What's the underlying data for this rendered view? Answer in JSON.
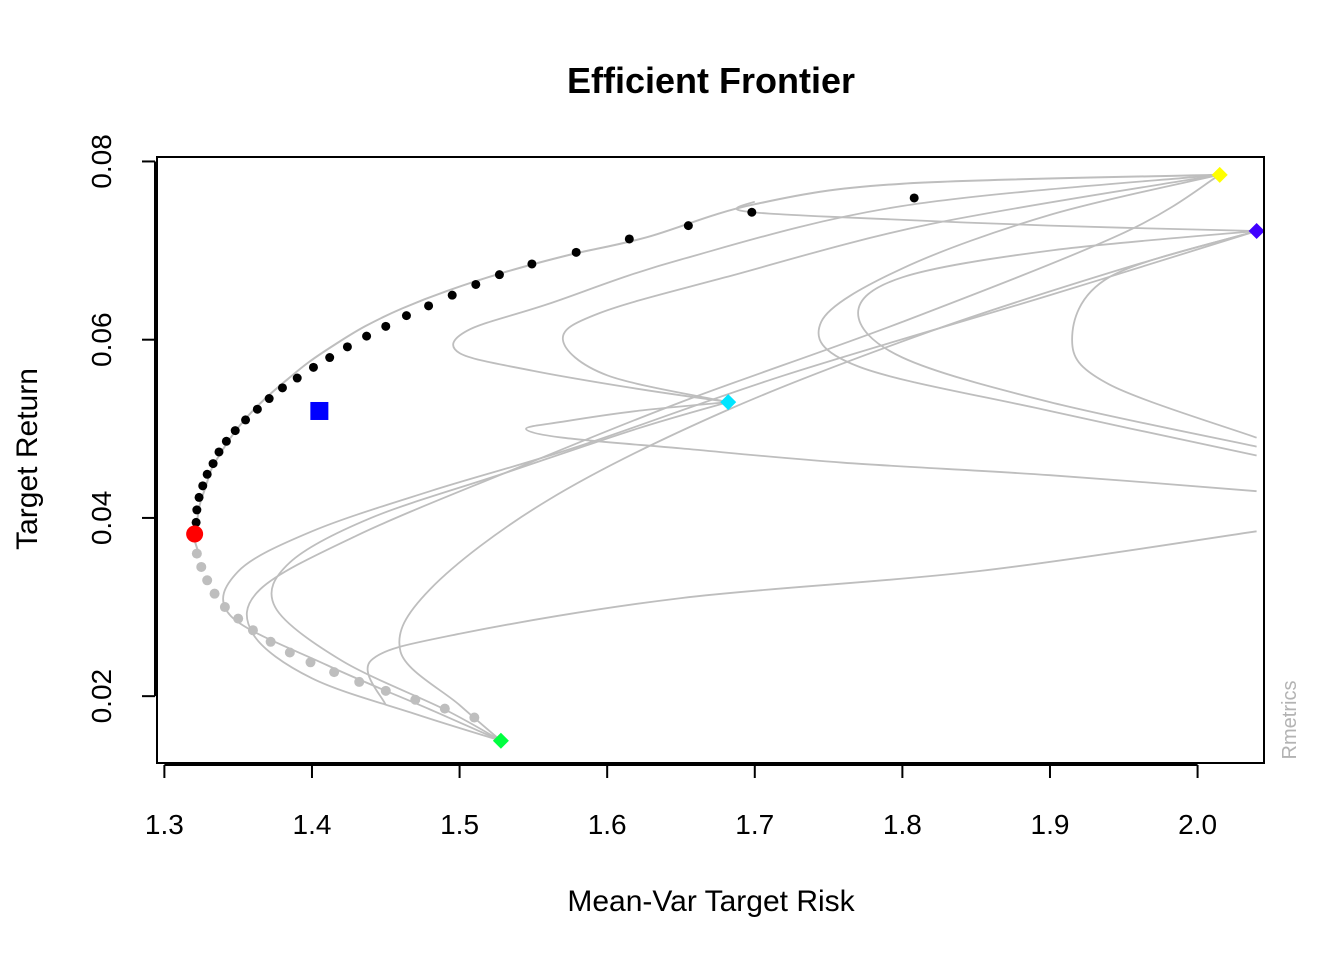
{
  "chart_data": {
    "type": "scatter",
    "title": "Efficient Frontier",
    "xlabel": "Mean-Var Target Risk",
    "ylabel": "Target Return",
    "xlim": [
      1.295,
      2.045
    ],
    "ylim": [
      0.0125,
      0.0805
    ],
    "xticks": [
      1.3,
      1.4,
      1.5,
      1.6,
      1.7,
      1.8,
      1.9,
      2.0
    ],
    "yticks": [
      0.02,
      0.04,
      0.06,
      0.08
    ],
    "xtick_labels": [
      "1.3",
      "1.4",
      "1.5",
      "1.6",
      "1.7",
      "1.8",
      "1.9",
      "2.0"
    ],
    "ytick_labels": [
      "0.02",
      "0.04",
      "0.06",
      "0.08"
    ],
    "grid": false,
    "credit": "Rmetrics",
    "colors": {
      "efficient": "#000000",
      "inefficient": "#bebebe",
      "min_variance": "#ff0000",
      "equal_weights": "#0000ff",
      "curves": "#bebebe"
    },
    "frontier_line": {
      "x": [
        1.323,
        1.3205,
        1.3207,
        1.322,
        1.324,
        1.328,
        1.332,
        1.339,
        1.347,
        1.357,
        1.369,
        1.383,
        1.398,
        1.416,
        1.436,
        1.461,
        1.492,
        1.529,
        1.574,
        1.627,
        1.7,
        1.8,
        2.015
      ],
      "y": [
        0.0362,
        0.0375,
        0.0382,
        0.0395,
        0.0415,
        0.0435,
        0.0455,
        0.0475,
        0.0495,
        0.0515,
        0.0535,
        0.0555,
        0.0575,
        0.0595,
        0.0615,
        0.0635,
        0.0655,
        0.0675,
        0.0695,
        0.0715,
        0.0752,
        0.0775,
        0.0785
      ]
    },
    "efficient_points": {
      "x": [
        1.3215,
        1.322,
        1.3235,
        1.326,
        1.329,
        1.333,
        1.337,
        1.342,
        1.348,
        1.355,
        1.363,
        1.371,
        1.38,
        1.39,
        1.401,
        1.412,
        1.424,
        1.437,
        1.45,
        1.464,
        1.479,
        1.495,
        1.511,
        1.527,
        1.549,
        1.579,
        1.615,
        1.655,
        1.698,
        1.808
      ],
      "y": [
        0.0395,
        0.0409,
        0.0423,
        0.0436,
        0.0449,
        0.0461,
        0.0474,
        0.0486,
        0.0498,
        0.051,
        0.0522,
        0.0534,
        0.0546,
        0.0557,
        0.0569,
        0.058,
        0.0592,
        0.0604,
        0.0615,
        0.0627,
        0.0638,
        0.065,
        0.0662,
        0.0673,
        0.0685,
        0.0698,
        0.0713,
        0.0728,
        0.0743,
        0.0759
      ]
    },
    "inefficient_points": {
      "x": [
        1.322,
        1.325,
        1.329,
        1.334,
        1.341,
        1.35,
        1.36,
        1.372,
        1.385,
        1.399,
        1.415,
        1.432,
        1.45,
        1.47,
        1.49,
        1.51
      ],
      "y": [
        0.036,
        0.0345,
        0.033,
        0.0315,
        0.03,
        0.0287,
        0.0274,
        0.0261,
        0.0249,
        0.0238,
        0.0227,
        0.0216,
        0.0206,
        0.0196,
        0.0186,
        0.0176
      ]
    },
    "min_variance_point": {
      "x": 1.3205,
      "y": 0.0382
    },
    "equal_weights_point": {
      "x": 1.405,
      "y": 0.052
    },
    "single_assets": [
      {
        "x": 1.528,
        "y": 0.015,
        "color": "#00ff40"
      },
      {
        "x": 1.682,
        "y": 0.053,
        "color": "#00e5ff"
      },
      {
        "x": 2.015,
        "y": 0.0785,
        "color": "#ffff00"
      },
      {
        "x": 2.04,
        "y": 0.0722,
        "color": "#4000ff"
      }
    ],
    "two_asset_curves": [
      {
        "x": [
          1.528,
          1.49,
          1.42,
          1.375,
          1.385,
          1.44,
          1.53,
          1.62,
          1.682
        ],
        "y": [
          0.015,
          0.0185,
          0.024,
          0.03,
          0.035,
          0.04,
          0.045,
          0.05,
          0.053
        ]
      },
      {
        "x": [
          1.528,
          1.47,
          1.4,
          1.36,
          1.365,
          1.43,
          1.53,
          1.65,
          1.8,
          1.95,
          2.015
        ],
        "y": [
          0.015,
          0.018,
          0.022,
          0.027,
          0.032,
          0.038,
          0.045,
          0.053,
          0.062,
          0.072,
          0.0785
        ]
      },
      {
        "x": [
          1.528,
          1.48,
          1.41,
          1.345,
          1.35,
          1.4,
          1.48,
          1.58,
          1.72,
          1.9,
          2.04
        ],
        "y": [
          0.015,
          0.0185,
          0.0235,
          0.029,
          0.034,
          0.0385,
          0.043,
          0.048,
          0.056,
          0.065,
          0.0722
        ]
      },
      {
        "x": [
          1.528,
          1.5,
          1.46,
          1.48,
          1.56,
          1.68,
          1.82,
          1.95,
          2.04
        ],
        "y": [
          0.015,
          0.019,
          0.025,
          0.032,
          0.042,
          0.052,
          0.061,
          0.068,
          0.0722
        ]
      },
      {
        "x": [
          1.682,
          1.62,
          1.55,
          1.5,
          1.505,
          1.56,
          1.65,
          1.8,
          2.015
        ],
        "y": [
          0.053,
          0.0545,
          0.0565,
          0.0585,
          0.061,
          0.064,
          0.069,
          0.075,
          0.0785
        ]
      },
      {
        "x": [
          1.682,
          1.62,
          1.57,
          1.545,
          1.57,
          1.65,
          1.76,
          1.9,
          2.04
        ],
        "y": [
          0.053,
          0.052,
          0.0508,
          0.05,
          0.049,
          0.0478,
          0.0462,
          0.0448,
          0.043
        ]
      },
      {
        "x": [
          1.682,
          1.6,
          1.57,
          1.595,
          1.68,
          1.82,
          2.015
        ],
        "y": [
          0.053,
          0.056,
          0.06,
          0.063,
          0.067,
          0.073,
          0.0785
        ]
      },
      {
        "x": [
          2.04,
          1.9,
          1.8,
          1.77,
          1.8,
          1.9,
          2.04
        ],
        "y": [
          0.0722,
          0.07,
          0.067,
          0.063,
          0.058,
          0.053,
          0.048
        ]
      },
      {
        "x": [
          2.015,
          1.9,
          1.8,
          1.745,
          1.77,
          1.9,
          2.04
        ],
        "y": [
          0.0785,
          0.074,
          0.068,
          0.062,
          0.057,
          0.052,
          0.047
        ]
      },
      {
        "x": [
          2.04,
          1.94,
          1.915,
          1.94,
          2.04
        ],
        "y": [
          0.0722,
          0.067,
          0.06,
          0.055,
          0.049
        ]
      },
      {
        "x": [
          1.7,
          1.69,
          1.75,
          1.9,
          2.04
        ],
        "y": [
          0.0755,
          0.0745,
          0.0738,
          0.0728,
          0.0722
        ]
      },
      {
        "x": [
          1.45,
          1.44,
          1.5,
          1.65,
          1.85,
          2.04
        ],
        "y": [
          0.019,
          0.024,
          0.027,
          0.031,
          0.034,
          0.0385
        ]
      }
    ]
  }
}
